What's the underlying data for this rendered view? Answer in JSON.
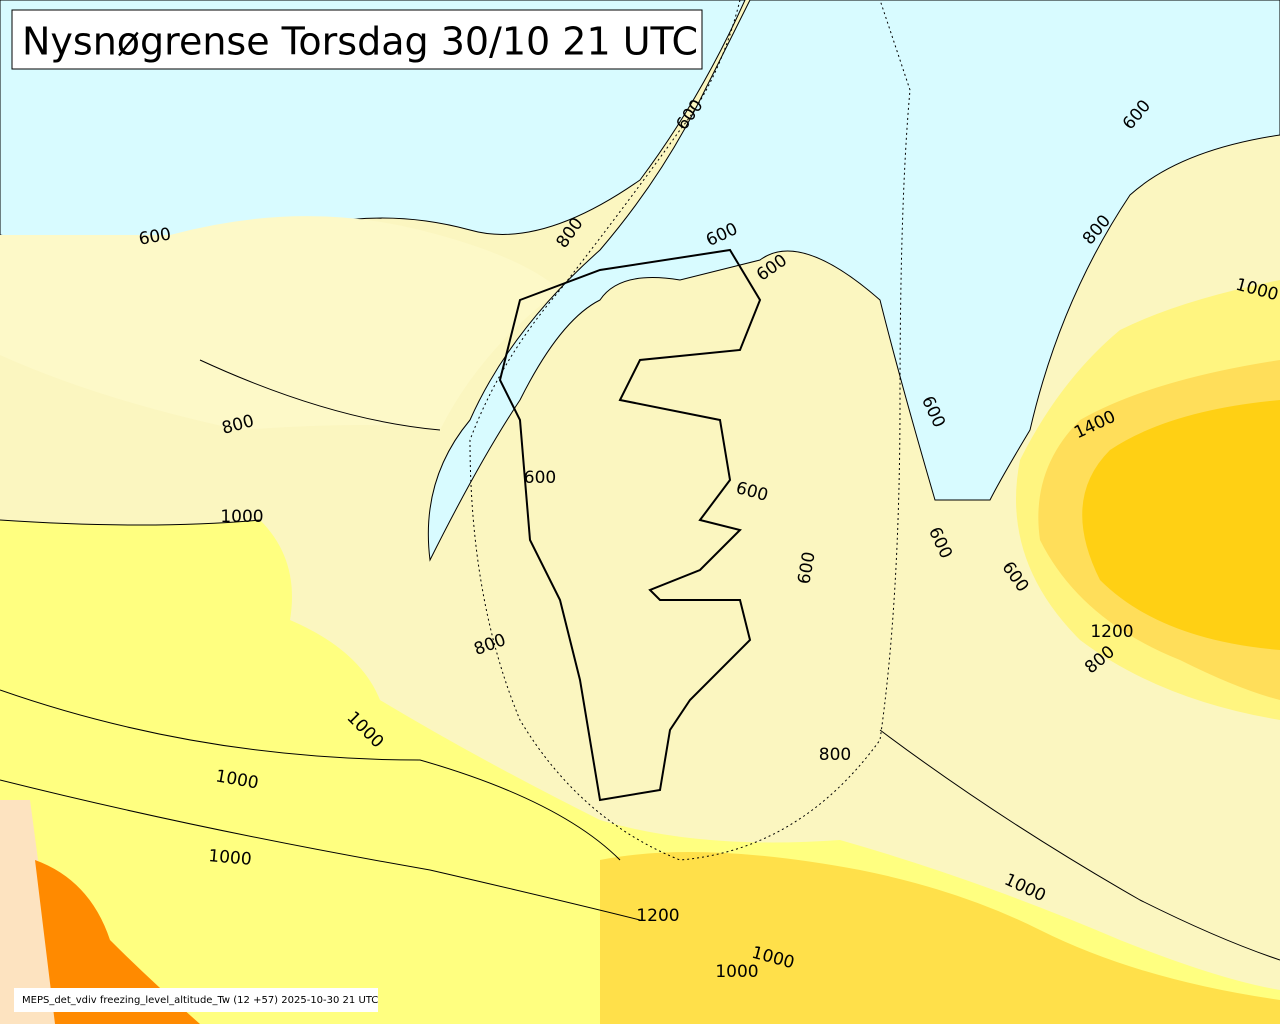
{
  "header": {
    "title": "Nysnøgrense Torsdag 30/10 21 UTC"
  },
  "footer": {
    "caption": "MEPS_det_vdiv freezing_level_altitude_Tw (12 +57) 2025-10-30 21 UTC"
  },
  "contour_labels": [
    600,
    800,
    600,
    600,
    600,
    600,
    800,
    1000,
    800,
    1000,
    600,
    600,
    600,
    600,
    600,
    600,
    1400,
    1200,
    800,
    800,
    1000,
    1000,
    1000,
    800,
    1000,
    1200,
    1000,
    1000
  ]
}
